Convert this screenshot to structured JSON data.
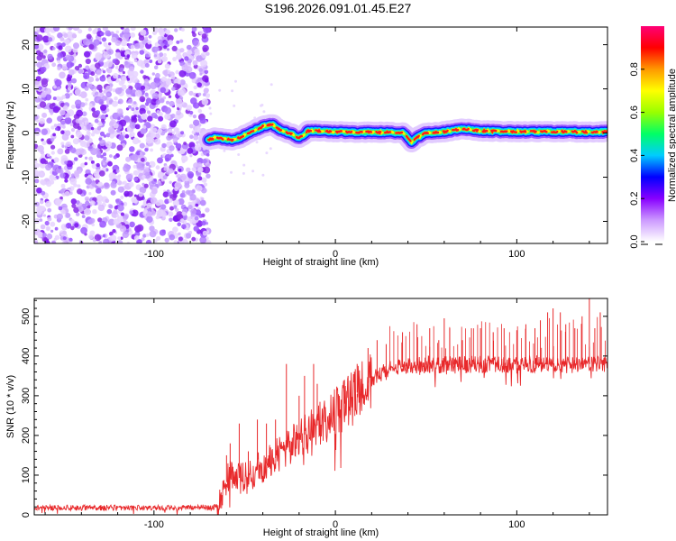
{
  "title": "S196.2026.091.01.45.E27",
  "chart_data": [
    {
      "type": "heatmap",
      "xlabel": "Height of straight line (km)",
      "ylabel": "Frequency (Hz)",
      "xlim": [
        -166,
        150
      ],
      "ylim": [
        -25,
        24
      ],
      "xticks": [
        -100,
        0,
        100
      ],
      "yticks": [
        -20,
        -10,
        0,
        10,
        20
      ],
      "colorbar": {
        "label": "Normalized spectral amplitude",
        "range": [
          0,
          1
        ],
        "ticks": [
          0.0,
          0.2,
          0.4,
          0.6,
          0.8
        ],
        "tick_labels": [
          "0.0",
          "0.2",
          "0.4",
          "0.6",
          "0.8"
        ],
        "stops": [
          "#ffffff",
          "#cc99ff",
          "#8800ff",
          "#0000ff",
          "#00ccff",
          "#00ff66",
          "#99ff00",
          "#ffff00",
          "#ff9900",
          "#ff0000",
          "#ff0077"
        ]
      },
      "noise_region": {
        "x_from": -166,
        "x_to": -70
      },
      "signal_trace": {
        "x": [
          -70,
          -65,
          -60,
          -55,
          -50,
          -45,
          -40,
          -35,
          -30,
          -25,
          -20,
          -15,
          -10,
          0,
          10,
          20,
          30,
          38,
          42,
          45,
          50,
          60,
          70,
          80,
          90,
          100,
          110,
          120,
          130,
          140,
          150
        ],
        "y": [
          -1.5,
          -1,
          -1.5,
          -1.5,
          -0.5,
          0.5,
          1.5,
          2,
          0.5,
          0,
          -1.2,
          0.5,
          0.5,
          0.3,
          0.2,
          0.2,
          0.2,
          0,
          -2,
          -1,
          0,
          0.3,
          1,
          0.5,
          0.4,
          0.3,
          0.3,
          0.3,
          0.3,
          0.2,
          0.3
        ]
      }
    },
    {
      "type": "line",
      "xlabel": "Height of straight line (km)",
      "ylabel": "SNR (10 * v/v)",
      "xlim": [
        -166,
        150
      ],
      "ylim": [
        0,
        545
      ],
      "xticks": [
        -100,
        0,
        100
      ],
      "yticks": [
        0,
        100,
        200,
        300,
        400,
        500
      ],
      "color": "#e8292b",
      "series": [
        {
          "name": "SNR",
          "x": [
            -166,
            -140,
            -120,
            -100,
            -80,
            -65,
            -62,
            -58,
            -55,
            -50,
            -45,
            -40,
            -35,
            -30,
            -25,
            -20,
            -15,
            -10,
            -5,
            0,
            5,
            10,
            15,
            20,
            25,
            30,
            40,
            50,
            60,
            70,
            80,
            90,
            100,
            110,
            120,
            130,
            140,
            150
          ],
          "values": [
            18,
            18,
            18,
            18,
            18,
            20,
            60,
            105,
            95,
            90,
            105,
            125,
            135,
            155,
            170,
            190,
            210,
            225,
            240,
            260,
            280,
            300,
            320,
            340,
            355,
            365,
            375,
            378,
            378,
            378,
            380,
            378,
            378,
            380,
            378,
            378,
            380,
            380
          ]
        }
      ],
      "spikes": {
        "x": [
          -60,
          -58,
          -53,
          -48,
          -43,
          -38,
          -33,
          -27,
          -20,
          -17,
          -12,
          -10,
          5,
          12,
          18,
          23,
          28,
          37,
          45,
          52,
          57,
          60,
          63,
          70,
          75,
          80,
          87,
          93,
          100,
          105,
          110,
          113,
          117,
          120,
          124,
          127,
          132,
          136,
          140,
          143,
          146,
          150
        ],
        "values": [
          150,
          180,
          230,
          160,
          240,
          230,
          240,
          380,
          300,
          350,
          380,
          330,
          340,
          380,
          420,
          440,
          430,
          460,
          480,
          470,
          440,
          495,
          470,
          440,
          470,
          470,
          460,
          470,
          465,
          480,
          470,
          490,
          510,
          520,
          510,
          480,
          470,
          500,
          545,
          470,
          510,
          520
        ]
      }
    }
  ]
}
